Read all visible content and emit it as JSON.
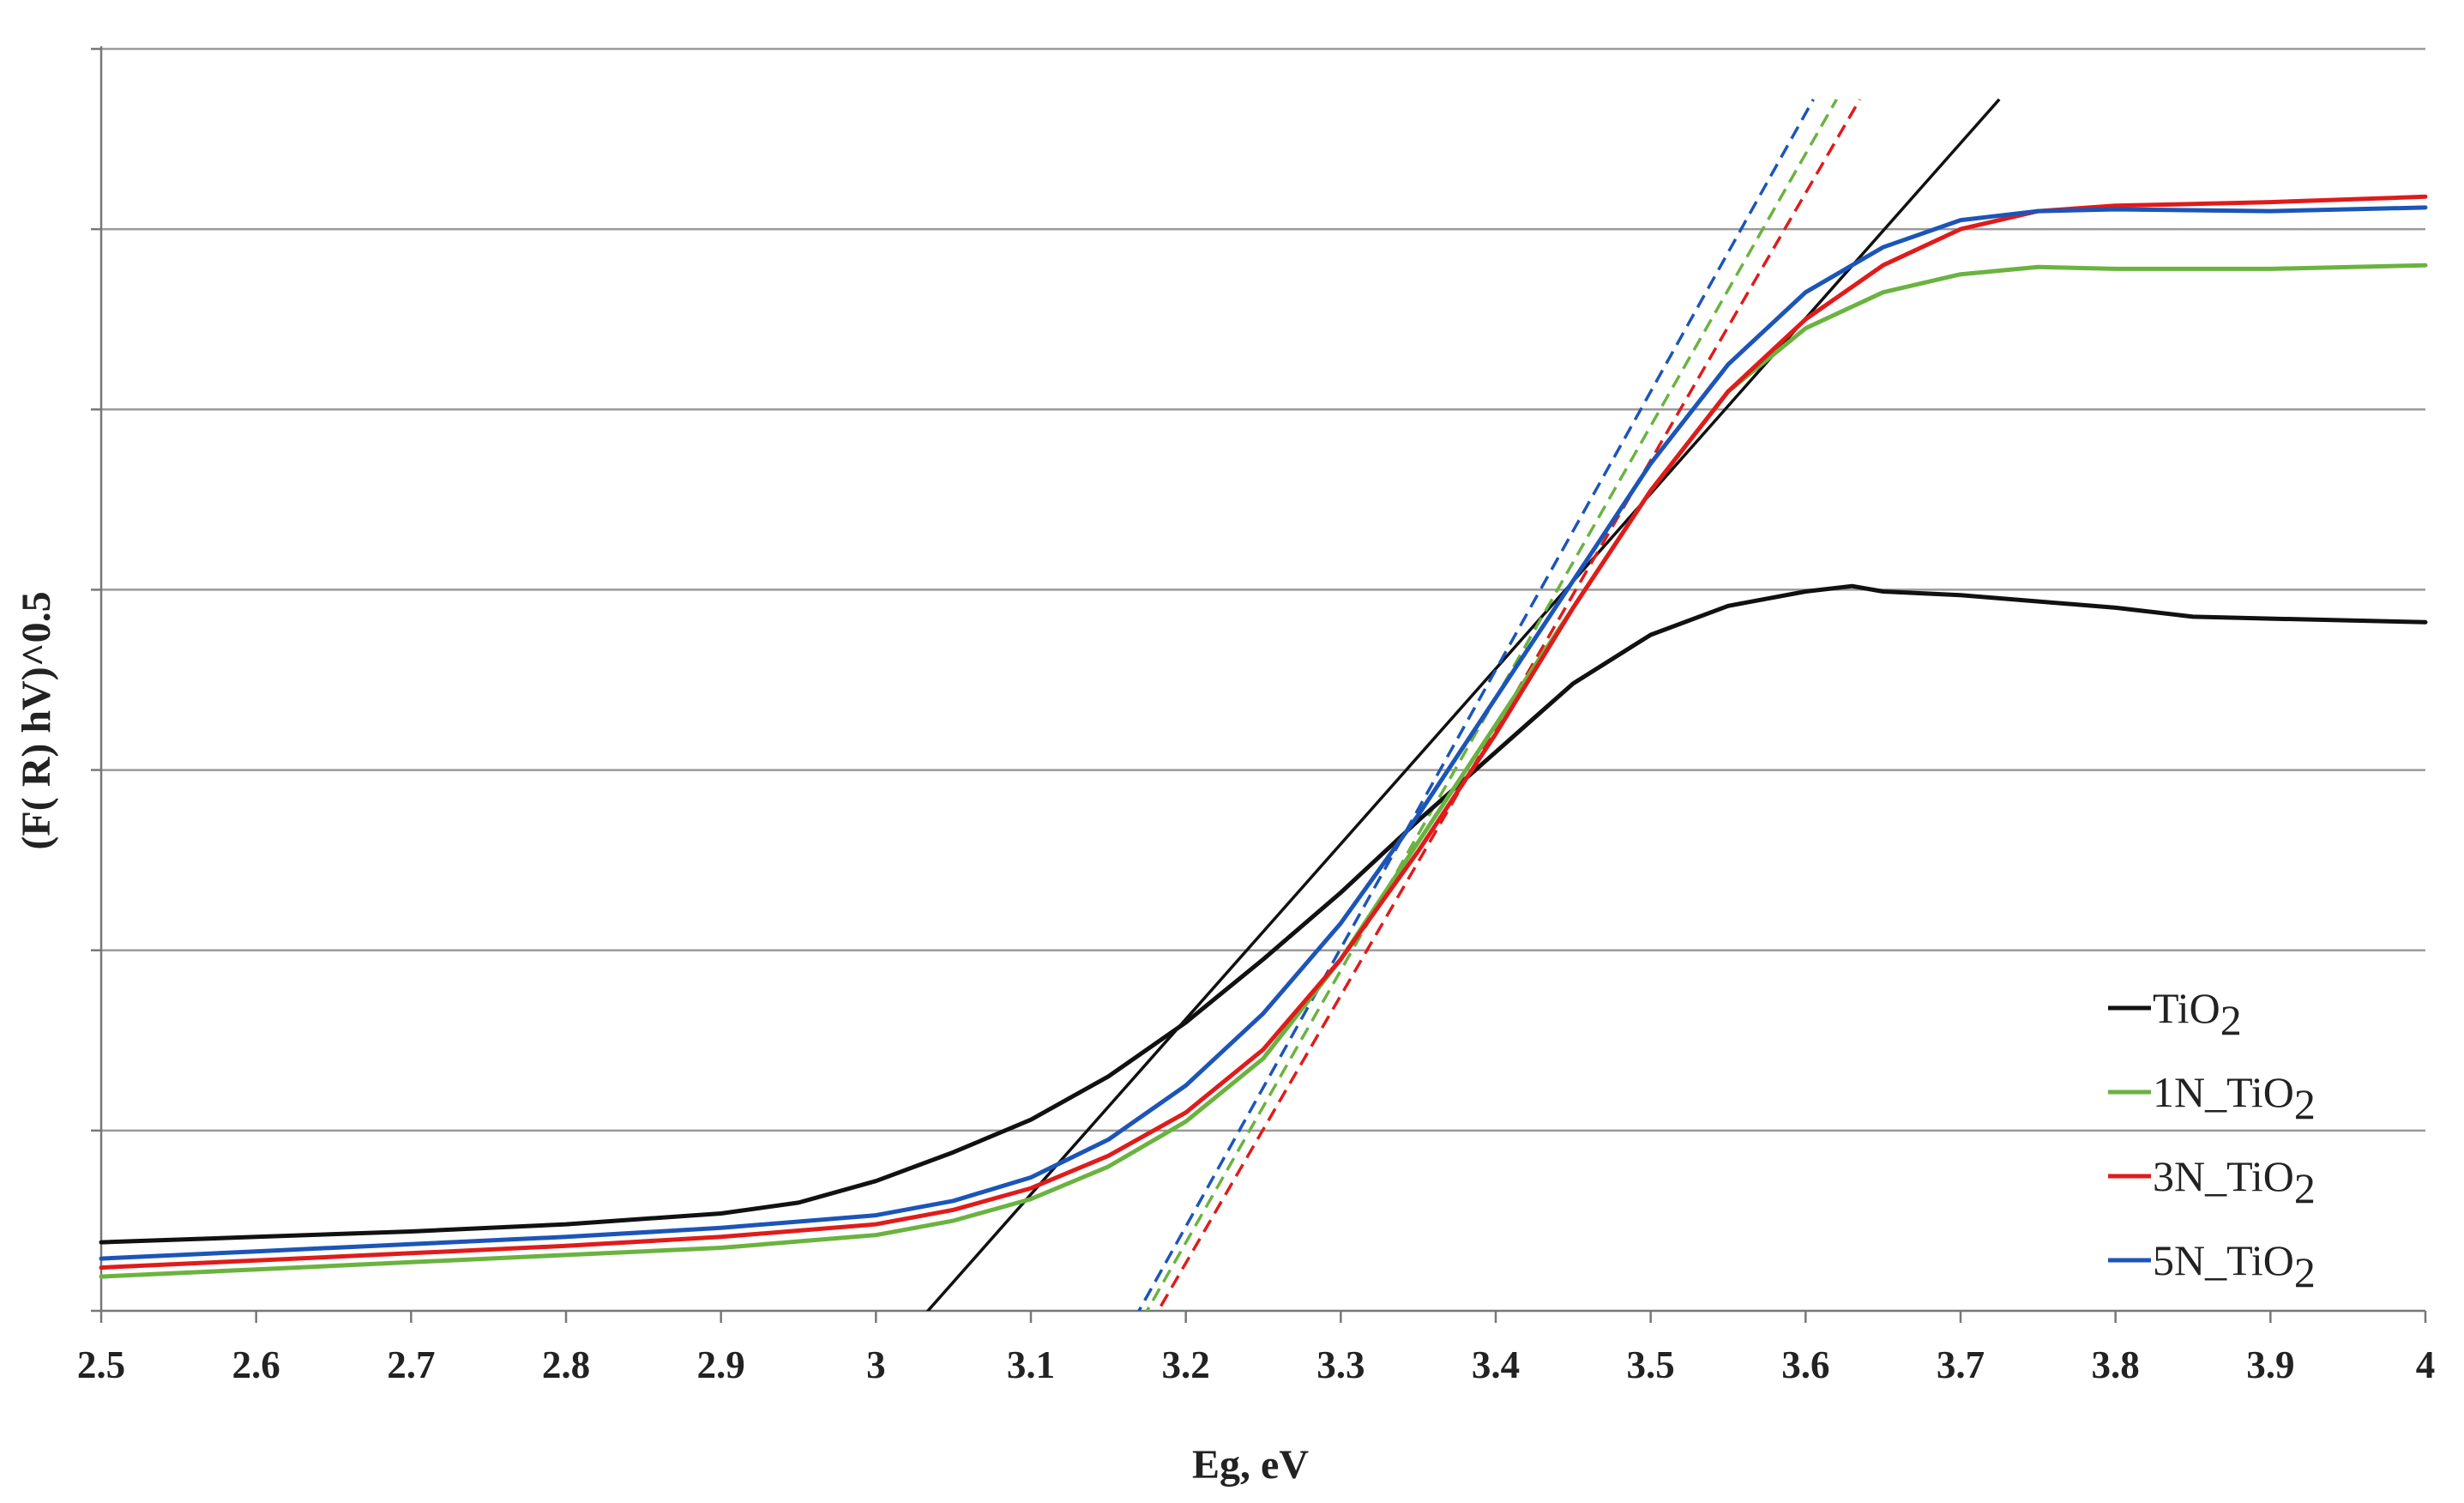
{
  "chart_data": {
    "type": "line",
    "title": "",
    "xlabel": "Eg, eV",
    "ylabel": "(F( R) hV)^0.5",
    "xlim": [
      2.5,
      4.0
    ],
    "ylim": [
      0,
      7
    ],
    "x_ticks": [
      "2.5",
      "2.6",
      "2.7",
      "2.8",
      "2.9",
      "3",
      "3.1",
      "3.2",
      "3.3",
      "3.4",
      "3.5",
      "3.6",
      "3.7",
      "3.8",
      "3.9",
      "4"
    ],
    "grid": "horizontal",
    "legend_placement": "bottom-right",
    "series": [
      {
        "name": "TiO2",
        "label_main": "TiO",
        "label_sub": "2",
        "color": "#111111",
        "points": [
          [
            2.5,
            0.38
          ],
          [
            2.6,
            0.41
          ],
          [
            2.7,
            0.44
          ],
          [
            2.8,
            0.48
          ],
          [
            2.9,
            0.54
          ],
          [
            2.95,
            0.6
          ],
          [
            3.0,
            0.72
          ],
          [
            3.05,
            0.88
          ],
          [
            3.1,
            1.06
          ],
          [
            3.15,
            1.3
          ],
          [
            3.2,
            1.6
          ],
          [
            3.25,
            1.95
          ],
          [
            3.3,
            2.32
          ],
          [
            3.35,
            2.72
          ],
          [
            3.4,
            3.1
          ],
          [
            3.45,
            3.48
          ],
          [
            3.5,
            3.75
          ],
          [
            3.55,
            3.91
          ],
          [
            3.6,
            3.99
          ],
          [
            3.63,
            4.02
          ],
          [
            3.65,
            3.99
          ],
          [
            3.7,
            3.97
          ],
          [
            3.8,
            3.9
          ],
          [
            3.85,
            3.85
          ],
          [
            3.9,
            3.84
          ],
          [
            4.0,
            3.82
          ]
        ]
      },
      {
        "name": "1N_TiO2",
        "label_main": "1N_TiO",
        "label_sub": "2",
        "color": "#6ab33f",
        "points": [
          [
            2.5,
            0.19
          ],
          [
            2.6,
            0.23
          ],
          [
            2.7,
            0.27
          ],
          [
            2.8,
            0.31
          ],
          [
            2.9,
            0.35
          ],
          [
            3.0,
            0.42
          ],
          [
            3.05,
            0.5
          ],
          [
            3.1,
            0.62
          ],
          [
            3.15,
            0.8
          ],
          [
            3.2,
            1.05
          ],
          [
            3.25,
            1.4
          ],
          [
            3.3,
            1.95
          ],
          [
            3.35,
            2.6
          ],
          [
            3.4,
            3.25
          ],
          [
            3.45,
            3.9
          ],
          [
            3.5,
            4.55
          ],
          [
            3.55,
            5.1
          ],
          [
            3.6,
            5.45
          ],
          [
            3.65,
            5.65
          ],
          [
            3.7,
            5.75
          ],
          [
            3.75,
            5.79
          ],
          [
            3.8,
            5.78
          ],
          [
            3.9,
            5.78
          ],
          [
            4.0,
            5.8
          ]
        ]
      },
      {
        "name": "3N_TiO2",
        "label_main": "3N_TiO",
        "label_sub": "2",
        "color": "#e01b1b",
        "points": [
          [
            2.5,
            0.24
          ],
          [
            2.6,
            0.28
          ],
          [
            2.7,
            0.32
          ],
          [
            2.8,
            0.36
          ],
          [
            2.9,
            0.41
          ],
          [
            3.0,
            0.48
          ],
          [
            3.05,
            0.56
          ],
          [
            3.1,
            0.68
          ],
          [
            3.15,
            0.86
          ],
          [
            3.2,
            1.1
          ],
          [
            3.25,
            1.45
          ],
          [
            3.3,
            1.95
          ],
          [
            3.35,
            2.55
          ],
          [
            3.4,
            3.2
          ],
          [
            3.45,
            3.9
          ],
          [
            3.5,
            4.55
          ],
          [
            3.55,
            5.1
          ],
          [
            3.6,
            5.5
          ],
          [
            3.65,
            5.8
          ],
          [
            3.7,
            6.0
          ],
          [
            3.75,
            6.1
          ],
          [
            3.8,
            6.13
          ],
          [
            3.9,
            6.15
          ],
          [
            4.0,
            6.18
          ]
        ]
      },
      {
        "name": "5N_TiO2",
        "label_main": "5N_TiO",
        "label_sub": "2",
        "color": "#1c55b8",
        "points": [
          [
            2.5,
            0.29
          ],
          [
            2.6,
            0.33
          ],
          [
            2.7,
            0.37
          ],
          [
            2.8,
            0.41
          ],
          [
            2.9,
            0.46
          ],
          [
            3.0,
            0.53
          ],
          [
            3.05,
            0.61
          ],
          [
            3.1,
            0.74
          ],
          [
            3.15,
            0.95
          ],
          [
            3.2,
            1.25
          ],
          [
            3.25,
            1.65
          ],
          [
            3.3,
            2.15
          ],
          [
            3.35,
            2.75
          ],
          [
            3.4,
            3.4
          ],
          [
            3.45,
            4.05
          ],
          [
            3.5,
            4.7
          ],
          [
            3.55,
            5.25
          ],
          [
            3.6,
            5.65
          ],
          [
            3.65,
            5.9
          ],
          [
            3.7,
            6.05
          ],
          [
            3.75,
            6.1
          ],
          [
            3.8,
            6.11
          ],
          [
            3.9,
            6.1
          ],
          [
            4.0,
            6.12
          ]
        ]
      }
    ],
    "tangent_lines": [
      {
        "series": "TiO2",
        "color": "#111111",
        "dash": false,
        "x": [
          3.015,
          3.725
        ],
        "y": [
          -0.18,
          6.72
        ]
      },
      {
        "series": "1N_TiO2",
        "color": "#6ab33f",
        "dash": true,
        "x": [
          3.165,
          3.62
        ],
        "y": [
          -0.15,
          6.72
        ]
      },
      {
        "series": "3N_TiO2",
        "color": "#e01b1b",
        "dash": true,
        "x": [
          3.17,
          3.635
        ],
        "y": [
          -0.18,
          6.72
        ]
      },
      {
        "series": "5N_TiO2",
        "color": "#1c55b8",
        "dash": true,
        "x": [
          3.16,
          3.605
        ],
        "y": [
          -0.15,
          6.72
        ]
      }
    ]
  }
}
